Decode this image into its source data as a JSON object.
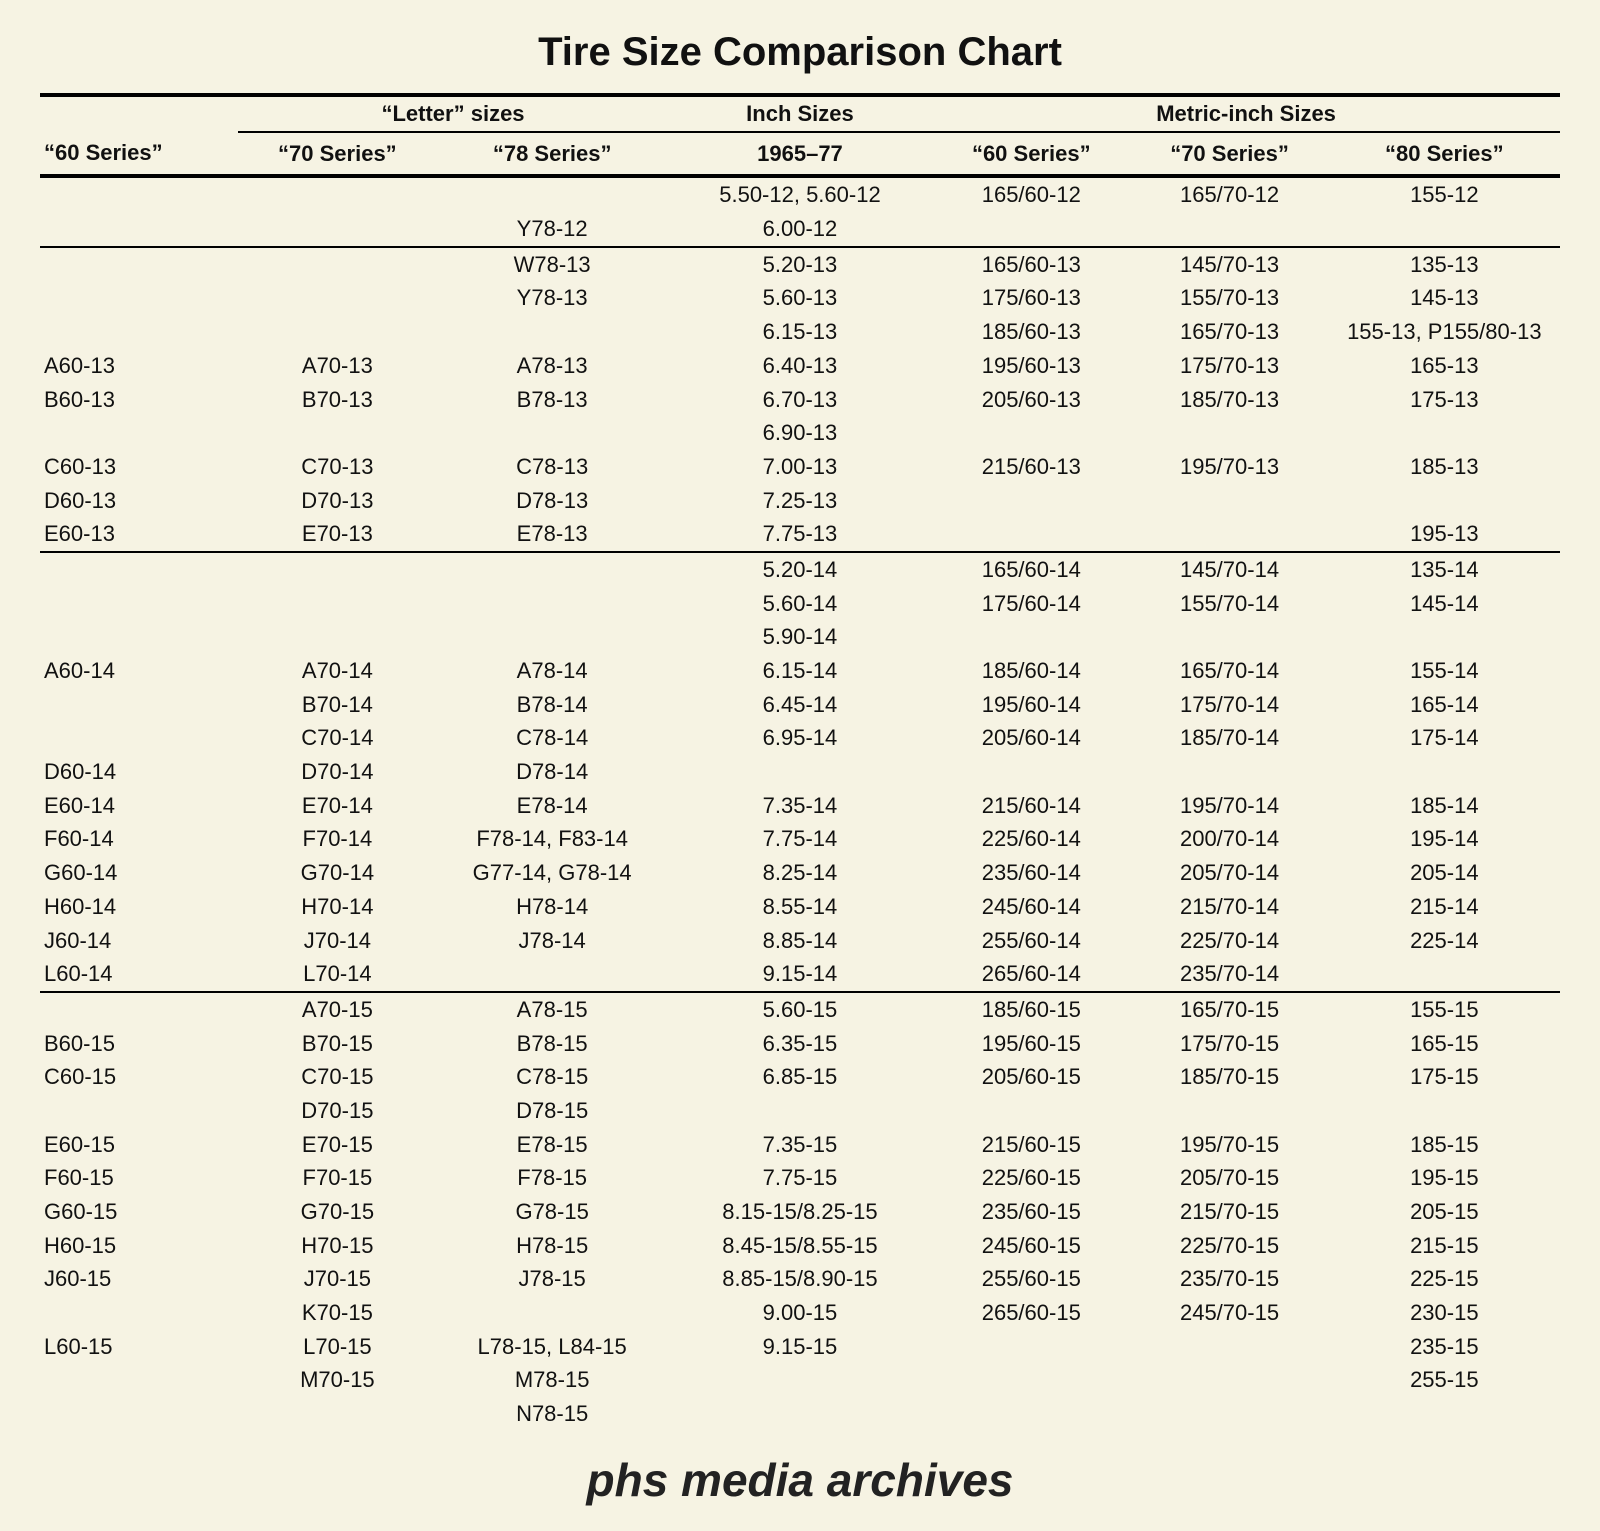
{
  "title": "Tire Size Comparison Chart",
  "watermark": "phs media archives",
  "background_color": "#f6f3e3",
  "text_color": "#111111",
  "rule_color": "#000000",
  "title_font_size_pt": 28,
  "body_font_size_pt": 16,
  "header_font_size_pt": 16,
  "watermark_font_size_pt": 32,
  "column_widths_pct": [
    12,
    12,
    14,
    16,
    12,
    12,
    14
  ],
  "header_groups": [
    {
      "label": "“Letter” sizes",
      "span": 3
    },
    {
      "label": "Inch Sizes",
      "span": 1
    },
    {
      "label": "Metric-inch Sizes",
      "span": 3
    }
  ],
  "columns": [
    "“60 Series”",
    "“70 Series”",
    "“78 Series”",
    "1965–77",
    "“60 Series”",
    "“70 Series”",
    "“80 Series”"
  ],
  "sections": [
    {
      "rows": [
        [
          "",
          "",
          "",
          "5.50-12, 5.60-12",
          "165/60-12",
          "165/70-12",
          "155-12"
        ],
        [
          "",
          "",
          "Y78-12",
          "6.00-12",
          "",
          "",
          ""
        ]
      ]
    },
    {
      "rows": [
        [
          "",
          "",
          "W78-13",
          "5.20-13",
          "165/60-13",
          "145/70-13",
          "135-13"
        ],
        [
          "",
          "",
          "Y78-13",
          "5.60-13",
          "175/60-13",
          "155/70-13",
          "145-13"
        ],
        [
          "",
          "",
          "",
          "6.15-13",
          "185/60-13",
          "165/70-13",
          "155-13, P155/80-13"
        ],
        [
          "A60-13",
          "A70-13",
          "A78-13",
          "6.40-13",
          "195/60-13",
          "175/70-13",
          "165-13"
        ],
        [
          "B60-13",
          "B70-13",
          "B78-13",
          "6.70-13",
          "205/60-13",
          "185/70-13",
          "175-13"
        ],
        [
          "",
          "",
          "",
          "6.90-13",
          "",
          "",
          ""
        ],
        [
          "C60-13",
          "C70-13",
          "C78-13",
          "7.00-13",
          "215/60-13",
          "195/70-13",
          "185-13"
        ],
        [
          "D60-13",
          "D70-13",
          "D78-13",
          "7.25-13",
          "",
          "",
          ""
        ],
        [
          "E60-13",
          "E70-13",
          "E78-13",
          "7.75-13",
          "",
          "",
          "195-13"
        ]
      ]
    },
    {
      "rows": [
        [
          "",
          "",
          "",
          "5.20-14",
          "165/60-14",
          "145/70-14",
          "135-14"
        ],
        [
          "",
          "",
          "",
          "5.60-14",
          "175/60-14",
          "155/70-14",
          "145-14"
        ],
        [
          "",
          "",
          "",
          "5.90-14",
          "",
          "",
          ""
        ],
        [
          "A60-14",
          "A70-14",
          "A78-14",
          "6.15-14",
          "185/60-14",
          "165/70-14",
          "155-14"
        ],
        [
          "",
          "B70-14",
          "B78-14",
          "6.45-14",
          "195/60-14",
          "175/70-14",
          "165-14"
        ],
        [
          "",
          "C70-14",
          "C78-14",
          "6.95-14",
          "205/60-14",
          "185/70-14",
          "175-14"
        ],
        [
          "D60-14",
          "D70-14",
          "D78-14",
          "",
          "",
          "",
          ""
        ],
        [
          "E60-14",
          "E70-14",
          "E78-14",
          "7.35-14",
          "215/60-14",
          "195/70-14",
          "185-14"
        ],
        [
          "F60-14",
          "F70-14",
          "F78-14, F83-14",
          "7.75-14",
          "225/60-14",
          "200/70-14",
          "195-14"
        ],
        [
          "G60-14",
          "G70-14",
          "G77-14, G78-14",
          "8.25-14",
          "235/60-14",
          "205/70-14",
          "205-14"
        ],
        [
          "H60-14",
          "H70-14",
          "H78-14",
          "8.55-14",
          "245/60-14",
          "215/70-14",
          "215-14"
        ],
        [
          "J60-14",
          "J70-14",
          "J78-14",
          "8.85-14",
          "255/60-14",
          "225/70-14",
          "225-14"
        ],
        [
          "L60-14",
          "L70-14",
          "",
          "9.15-14",
          "265/60-14",
          "235/70-14",
          ""
        ]
      ]
    },
    {
      "rows": [
        [
          "",
          "A70-15",
          "A78-15",
          "5.60-15",
          "185/60-15",
          "165/70-15",
          "155-15"
        ],
        [
          "B60-15",
          "B70-15",
          "B78-15",
          "6.35-15",
          "195/60-15",
          "175/70-15",
          "165-15"
        ],
        [
          "C60-15",
          "C70-15",
          "C78-15",
          "6.85-15",
          "205/60-15",
          "185/70-15",
          "175-15"
        ],
        [
          "",
          "D70-15",
          "D78-15",
          "",
          "",
          "",
          ""
        ],
        [
          "E60-15",
          "E70-15",
          "E78-15",
          "7.35-15",
          "215/60-15",
          "195/70-15",
          "185-15"
        ],
        [
          "F60-15",
          "F70-15",
          "F78-15",
          "7.75-15",
          "225/60-15",
          "205/70-15",
          "195-15"
        ],
        [
          "G60-15",
          "G70-15",
          "G78-15",
          "8.15-15/8.25-15",
          "235/60-15",
          "215/70-15",
          "205-15"
        ],
        [
          "H60-15",
          "H70-15",
          "H78-15",
          "8.45-15/8.55-15",
          "245/60-15",
          "225/70-15",
          "215-15"
        ],
        [
          "J60-15",
          "J70-15",
          "J78-15",
          "8.85-15/8.90-15",
          "255/60-15",
          "235/70-15",
          "225-15"
        ],
        [
          "",
          "K70-15",
          "",
          "9.00-15",
          "265/60-15",
          "245/70-15",
          "230-15"
        ],
        [
          "L60-15",
          "L70-15",
          "L78-15, L84-15",
          "9.15-15",
          "",
          "",
          "235-15"
        ],
        [
          "",
          "M70-15",
          "M78-15",
          "",
          "",
          "",
          "255-15"
        ],
        [
          "",
          "",
          "N78-15",
          "",
          "",
          "",
          ""
        ]
      ]
    }
  ]
}
